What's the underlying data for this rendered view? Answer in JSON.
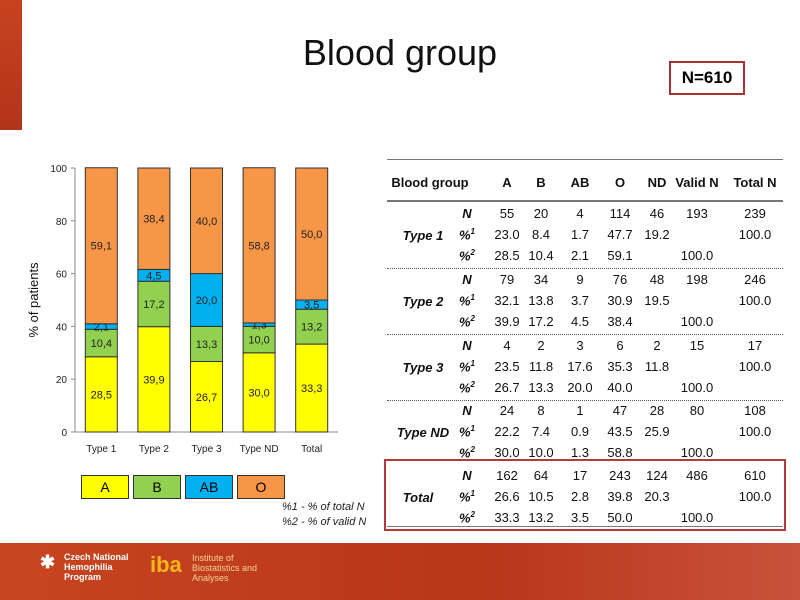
{
  "title": "Blood group",
  "n_badge": "N=610",
  "colors": {
    "A": "#ffff00",
    "B": "#92d050",
    "AB": "#00b0f0",
    "O": "#f79646",
    "accent": "#b33a3a"
  },
  "chart_data": {
    "type": "bar",
    "stacked": true,
    "categories": [
      "Type 1",
      "Type 2",
      "Type 3",
      "Type ND",
      "Total"
    ],
    "ylabel": "% of patients",
    "ylim": [
      0,
      100
    ],
    "yticks": [
      0,
      20,
      40,
      60,
      80,
      100
    ],
    "series": [
      {
        "name": "A",
        "values": [
          28.5,
          39.9,
          26.7,
          30.0,
          33.3
        ],
        "labels": [
          "28,5",
          "39,9",
          "26,7",
          "30,0",
          "33,3"
        ]
      },
      {
        "name": "B",
        "values": [
          10.4,
          17.2,
          13.3,
          10.0,
          13.2
        ],
        "labels": [
          "10,4",
          "17,2",
          "13,3",
          "10,0",
          "13,2"
        ]
      },
      {
        "name": "AB",
        "values": [
          2.1,
          4.5,
          20.0,
          1.3,
          3.5
        ],
        "labels": [
          "2,1",
          "4,5",
          "20,0",
          "1,3",
          "3,5"
        ]
      },
      {
        "name": "O",
        "values": [
          59.1,
          38.4,
          40.0,
          58.8,
          50.0
        ],
        "labels": [
          "59,1",
          "38,4",
          "40,0",
          "58,8",
          "50,0"
        ]
      }
    ],
    "legend": "bottom"
  },
  "notes": [
    "%1 - % of total N",
    "%2 - % of valid N"
  ],
  "table": {
    "headers": [
      "Blood group",
      "A",
      "B",
      "AB",
      "O",
      "ND",
      "Valid N",
      "Total N"
    ],
    "groups": [
      {
        "label": "Type 1",
        "rows": [
          [
            "N",
            "55",
            "20",
            "4",
            "114",
            "46",
            "193",
            "239"
          ],
          [
            "%1",
            "23.0",
            "8.4",
            "1.7",
            "47.7",
            "19.2",
            "",
            "100.0"
          ],
          [
            "%2",
            "28.5",
            "10.4",
            "2.1",
            "59.1",
            "",
            "100.0",
            ""
          ]
        ]
      },
      {
        "label": "Type 2",
        "rows": [
          [
            "N",
            "79",
            "34",
            "9",
            "76",
            "48",
            "198",
            "246"
          ],
          [
            "%1",
            "32.1",
            "13.8",
            "3.7",
            "30.9",
            "19.5",
            "",
            "100.0"
          ],
          [
            "%2",
            "39.9",
            "17.2",
            "4.5",
            "38.4",
            "",
            "100.0",
            ""
          ]
        ]
      },
      {
        "label": "Type 3",
        "rows": [
          [
            "N",
            "4",
            "2",
            "3",
            "6",
            "2",
            "15",
            "17"
          ],
          [
            "%1",
            "23.5",
            "11.8",
            "17.6",
            "35.3",
            "11.8",
            "",
            "100.0"
          ],
          [
            "%2",
            "26.7",
            "13.3",
            "20.0",
            "40.0",
            "",
            "100.0",
            ""
          ]
        ]
      },
      {
        "label": "Type ND",
        "rows": [
          [
            "N",
            "24",
            "8",
            "1",
            "47",
            "28",
            "80",
            "108"
          ],
          [
            "%1",
            "22.2",
            "7.4",
            "0.9",
            "43.5",
            "25.9",
            "",
            "100.0"
          ],
          [
            "%2",
            "30.0",
            "10.0",
            "1.3",
            "58.8",
            "",
            "100.0",
            ""
          ]
        ]
      },
      {
        "label": "Total",
        "rows": [
          [
            "N",
            "162",
            "64",
            "17",
            "243",
            "124",
            "486",
            "610"
          ],
          [
            "%1",
            "26.6",
            "10.5",
            "2.8",
            "39.8",
            "20.3",
            "",
            "100.0"
          ],
          [
            "%2",
            "33.3",
            "13.2",
            "3.5",
            "50.0",
            "",
            "100.0",
            ""
          ]
        ]
      }
    ]
  },
  "footer": {
    "logo1": "Czech National Hemophilia Program",
    "logo2_mark": "iba",
    "logo2": "Institute of Biostatistics and Analyses"
  }
}
